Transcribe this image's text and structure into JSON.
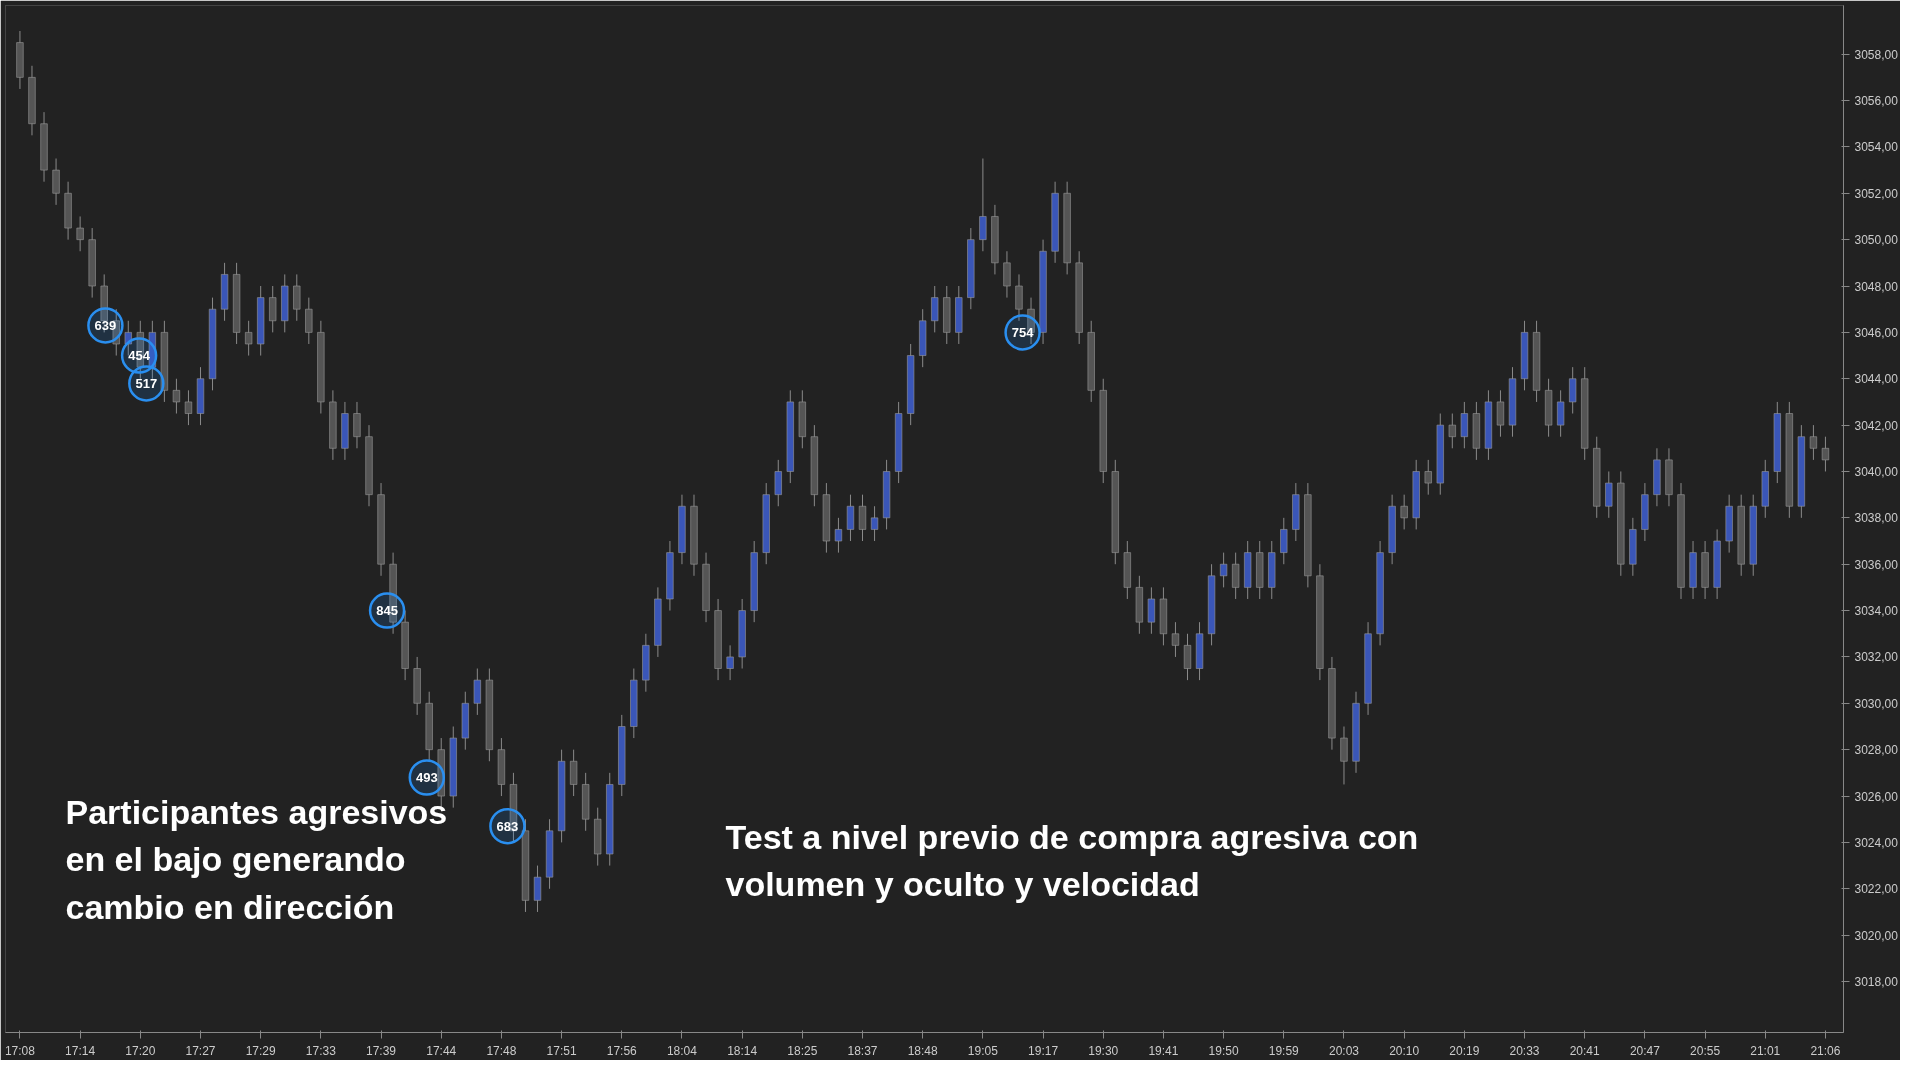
{
  "chart_data": {
    "type": "candlestick",
    "categories": [
      "17:08",
      null,
      null,
      null,
      null,
      "17:14",
      null,
      null,
      null,
      null,
      "17:20",
      null,
      null,
      null,
      null,
      "17:27",
      null,
      null,
      null,
      null,
      "17:29",
      null,
      null,
      null,
      null,
      "17:33",
      null,
      null,
      null,
      null,
      "17:39",
      null,
      null,
      null,
      null,
      "17:44",
      null,
      null,
      null,
      null,
      "17:48",
      null,
      null,
      null,
      null,
      "17:51",
      null,
      null,
      null,
      null,
      "17:56",
      null,
      null,
      null,
      null,
      "18:04",
      null,
      null,
      null,
      null,
      "18:14",
      null,
      null,
      null,
      null,
      "18:25",
      null,
      null,
      null,
      null,
      "18:37",
      null,
      null,
      null,
      null,
      "18:48",
      null,
      null,
      null,
      null,
      "19:05",
      null,
      null,
      null,
      null,
      "19:17",
      null,
      null,
      null,
      null,
      "19:30",
      null,
      null,
      null,
      null,
      "19:41",
      null,
      null,
      null,
      null,
      "19:50",
      null,
      null,
      null,
      null,
      "19:59",
      null,
      null,
      null,
      null,
      "20:03",
      null,
      null,
      null,
      null,
      "20:10",
      null,
      null,
      null,
      null,
      "20:19",
      null,
      null,
      null,
      null,
      "20:33",
      null,
      null,
      null,
      null,
      "20:41",
      null,
      null,
      null,
      null,
      "20:47",
      null,
      null,
      null,
      null,
      "20:55",
      null,
      null,
      null,
      null,
      "21:01",
      null,
      null,
      null,
      null,
      "21:06"
    ],
    "ohlc": [
      [
        3058.5,
        3059,
        3056.5,
        3057
      ],
      [
        3057,
        3057.5,
        3054.5,
        3055
      ],
      [
        3055,
        3055.5,
        3052.5,
        3053
      ],
      [
        3053,
        3053.5,
        3051.5,
        3052
      ],
      [
        3052,
        3052.5,
        3050,
        3050.5
      ],
      [
        3050.5,
        3051,
        3049.5,
        3050
      ],
      [
        3050,
        3050.5,
        3047.5,
        3048
      ],
      [
        3048,
        3048.5,
        3046,
        3046.5
      ],
      [
        3046.5,
        3047,
        3045,
        3045.5
      ],
      [
        3045.5,
        3046.5,
        3045,
        3046
      ],
      [
        3046,
        3046.5,
        3044,
        3044.5
      ],
      [
        3044.5,
        3046.5,
        3044,
        3046
      ],
      [
        3046,
        3046.5,
        3043,
        3043.5
      ],
      [
        3043.5,
        3044,
        3042.5,
        3043
      ],
      [
        3043,
        3043.5,
        3042,
        3042.5
      ],
      [
        3042.5,
        3044.5,
        3042,
        3044
      ],
      [
        3044,
        3047.5,
        3043.5,
        3047
      ],
      [
        3047,
        3049,
        3046.5,
        3048.5
      ],
      [
        3048.5,
        3049,
        3045.5,
        3046
      ],
      [
        3046,
        3046.5,
        3045,
        3045.5
      ],
      [
        3045.5,
        3048,
        3045,
        3047.5
      ],
      [
        3047.5,
        3048,
        3046,
        3046.5
      ],
      [
        3046.5,
        3048.5,
        3046,
        3048
      ],
      [
        3048,
        3048.5,
        3046.5,
        3047
      ],
      [
        3047,
        3047.5,
        3045.5,
        3046
      ],
      [
        3046,
        3046.5,
        3042.5,
        3043
      ],
      [
        3043,
        3043.5,
        3040.5,
        3041
      ],
      [
        3041,
        3043,
        3040.5,
        3042.5
      ],
      [
        3042.5,
        3043,
        3041,
        3041.5
      ],
      [
        3041.5,
        3042,
        3038.5,
        3039
      ],
      [
        3039,
        3039.5,
        3035.5,
        3036
      ],
      [
        3036,
        3036.5,
        3033,
        3033.5
      ],
      [
        3033.5,
        3034,
        3031,
        3031.5
      ],
      [
        3031.5,
        3032,
        3029.5,
        3030
      ],
      [
        3030,
        3030.5,
        3027.5,
        3028
      ],
      [
        3028,
        3028.5,
        3025.5,
        3026
      ],
      [
        3026,
        3029,
        3025.5,
        3028.5
      ],
      [
        3028.5,
        3030.5,
        3028,
        3030
      ],
      [
        3030,
        3031.5,
        3029.5,
        3031
      ],
      [
        3031,
        3031.5,
        3027.5,
        3028
      ],
      [
        3028,
        3028.5,
        3026,
        3026.5
      ],
      [
        3026.5,
        3027,
        3024,
        3024.5
      ],
      [
        3024.5,
        3025,
        3021,
        3021.5
      ],
      [
        3021.5,
        3023,
        3021,
        3022.5
      ],
      [
        3022.5,
        3025,
        3022,
        3024.5
      ],
      [
        3024.5,
        3028,
        3024,
        3027.5
      ],
      [
        3027.5,
        3028,
        3026,
        3026.5
      ],
      [
        3026.5,
        3027,
        3024.5,
        3025
      ],
      [
        3025,
        3025.5,
        3023,
        3023.5
      ],
      [
        3023.5,
        3027,
        3023,
        3026.5
      ],
      [
        3026.5,
        3029.5,
        3026,
        3029
      ],
      [
        3029,
        3031.5,
        3028.5,
        3031
      ],
      [
        3031,
        3033,
        3030.5,
        3032.5
      ],
      [
        3032.5,
        3035,
        3032,
        3034.5
      ],
      [
        3034.5,
        3037,
        3034,
        3036.5
      ],
      [
        3036.5,
        3039,
        3036,
        3038.5
      ],
      [
        3038.5,
        3039,
        3035.5,
        3036
      ],
      [
        3036,
        3036.5,
        3033.5,
        3034
      ],
      [
        3034,
        3034.5,
        3031,
        3031.5
      ],
      [
        3031.5,
        3032.5,
        3031,
        3032
      ],
      [
        3032,
        3034.5,
        3031.5,
        3034
      ],
      [
        3034,
        3037,
        3033.5,
        3036.5
      ],
      [
        3036.5,
        3039.5,
        3036,
        3039
      ],
      [
        3039,
        3040.5,
        3038.5,
        3040
      ],
      [
        3040,
        3043.5,
        3039.5,
        3043
      ],
      [
        3043,
        3043.5,
        3041,
        3041.5
      ],
      [
        3041.5,
        3042,
        3038.5,
        3039
      ],
      [
        3039,
        3039.5,
        3036.5,
        3037
      ],
      [
        3037,
        3038,
        3036.5,
        3037.5
      ],
      [
        3037.5,
        3039,
        3037,
        3038.5
      ],
      [
        3038.5,
        3039,
        3037,
        3037.5
      ],
      [
        3037.5,
        3038.5,
        3037,
        3038
      ],
      [
        3038,
        3040.5,
        3037.5,
        3040
      ],
      [
        3040,
        3043,
        3039.5,
        3042.5
      ],
      [
        3042.5,
        3045.5,
        3042,
        3045
      ],
      [
        3045,
        3047,
        3044.5,
        3046.5
      ],
      [
        3046.5,
        3048,
        3046,
        3047.5
      ],
      [
        3047.5,
        3048,
        3045.5,
        3046
      ],
      [
        3046,
        3048,
        3045.5,
        3047.5
      ],
      [
        3047.5,
        3050.5,
        3047,
        3050
      ],
      [
        3050,
        3053.5,
        3049.5,
        3051
      ],
      [
        3051,
        3051.5,
        3048.5,
        3049
      ],
      [
        3049,
        3049.5,
        3047.5,
        3048
      ],
      [
        3048,
        3048.5,
        3046.5,
        3047
      ],
      [
        3047,
        3047.5,
        3045.5,
        3046
      ],
      [
        3046,
        3050,
        3045.5,
        3049.5
      ],
      [
        3049.5,
        3052.5,
        3049,
        3052
      ],
      [
        3052,
        3052.5,
        3048.5,
        3049
      ],
      [
        3049,
        3049.5,
        3045.5,
        3046
      ],
      [
        3046,
        3046.5,
        3043,
        3043.5
      ],
      [
        3043.5,
        3044,
        3039.5,
        3040
      ],
      [
        3040,
        3040.5,
        3036,
        3036.5
      ],
      [
        3036.5,
        3037,
        3034.5,
        3035
      ],
      [
        3035,
        3035.5,
        3033,
        3033.5
      ],
      [
        3033.5,
        3035,
        3033,
        3034.5
      ],
      [
        3034.5,
        3035,
        3032.5,
        3033
      ],
      [
        3033,
        3033.5,
        3032,
        3032.5
      ],
      [
        3032.5,
        3033,
        3031,
        3031.5
      ],
      [
        3031.5,
        3033.5,
        3031,
        3033
      ],
      [
        3033,
        3036,
        3032.5,
        3035.5
      ],
      [
        3035.5,
        3036.5,
        3035,
        3036
      ],
      [
        3036,
        3036.5,
        3034.5,
        3035
      ],
      [
        3035,
        3037,
        3034.5,
        3036.5
      ],
      [
        3036.5,
        3037,
        3034.5,
        3035
      ],
      [
        3035,
        3037,
        3034.5,
        3036.5
      ],
      [
        3036.5,
        3038,
        3036,
        3037.5
      ],
      [
        3037.5,
        3039.5,
        3037,
        3039
      ],
      [
        3039,
        3039.5,
        3035,
        3035.5
      ],
      [
        3035.5,
        3036,
        3031,
        3031.5
      ],
      [
        3031.5,
        3032,
        3028,
        3028.5
      ],
      [
        3028.5,
        3029,
        3026.5,
        3027.5
      ],
      [
        3027.5,
        3030.5,
        3027,
        3030
      ],
      [
        3030,
        3033.5,
        3029.5,
        3033
      ],
      [
        3033,
        3037,
        3032.5,
        3036.5
      ],
      [
        3036.5,
        3039,
        3036,
        3038.5
      ],
      [
        3038.5,
        3039,
        3037.5,
        3038
      ],
      [
        3038,
        3040.5,
        3037.5,
        3040
      ],
      [
        3040,
        3040.5,
        3039,
        3039.5
      ],
      [
        3039.5,
        3042.5,
        3039,
        3042
      ],
      [
        3042,
        3042.5,
        3041,
        3041.5
      ],
      [
        3041.5,
        3043,
        3041,
        3042.5
      ],
      [
        3042.5,
        3043,
        3040.5,
        3041
      ],
      [
        3041,
        3043.5,
        3040.5,
        3043
      ],
      [
        3043,
        3043.5,
        3041.5,
        3042
      ],
      [
        3042,
        3044.5,
        3041.5,
        3044
      ],
      [
        3044,
        3046.5,
        3043.5,
        3046
      ],
      [
        3046,
        3046.5,
        3043,
        3043.5
      ],
      [
        3043.5,
        3044,
        3041.5,
        3042
      ],
      [
        3042,
        3043.5,
        3041.5,
        3043
      ],
      [
        3043,
        3044.5,
        3042.5,
        3044
      ],
      [
        3044,
        3044.5,
        3040.5,
        3041
      ],
      [
        3041,
        3041.5,
        3038,
        3038.5
      ],
      [
        3038.5,
        3040,
        3038,
        3039.5
      ],
      [
        3039.5,
        3040,
        3035.5,
        3036
      ],
      [
        3036,
        3038,
        3035.5,
        3037.5
      ],
      [
        3037.5,
        3039.5,
        3037,
        3039
      ],
      [
        3039,
        3041,
        3038.5,
        3040.5
      ],
      [
        3040.5,
        3041,
        3038.5,
        3039
      ],
      [
        3039,
        3039.5,
        3034.5,
        3035
      ],
      [
        3035,
        3037,
        3034.5,
        3036.5
      ],
      [
        3036.5,
        3037,
        3034.5,
        3035
      ],
      [
        3035,
        3037.5,
        3034.5,
        3037
      ],
      [
        3037,
        3039,
        3036.5,
        3038.5
      ],
      [
        3038.5,
        3039,
        3035.5,
        3036
      ],
      [
        3036,
        3039,
        3035.5,
        3038.5
      ],
      [
        3038.5,
        3040.5,
        3038,
        3040
      ],
      [
        3040,
        3043,
        3039.5,
        3042.5
      ],
      [
        3042.5,
        3043,
        3038,
        3038.5
      ],
      [
        3038.5,
        3042,
        3038,
        3041.5
      ],
      [
        3041.5,
        3042,
        3040.5,
        3041
      ],
      [
        3041,
        3041.5,
        3040,
        3040.5
      ]
    ],
    "ylim": [
      3015.8,
      3060.1
    ],
    "yticks": [
      {
        "value": 3018,
        "label": "3018,00"
      },
      {
        "value": 3020,
        "label": "3020,00"
      },
      {
        "value": 3022,
        "label": "3022,00"
      },
      {
        "value": 3024,
        "label": "3024,00"
      },
      {
        "value": 3026,
        "label": "3026,00"
      },
      {
        "value": 3028,
        "label": "3028,00"
      },
      {
        "value": 3030,
        "label": "3030,00"
      },
      {
        "value": 3032,
        "label": "3032,00"
      },
      {
        "value": 3034,
        "label": "3034,00"
      },
      {
        "value": 3036,
        "label": "3036,00"
      },
      {
        "value": 3038,
        "label": "3038,00"
      },
      {
        "value": 3040,
        "label": "3040,00"
      },
      {
        "value": 3042,
        "label": "3042,00"
      },
      {
        "value": 3044,
        "label": "3044,00"
      },
      {
        "value": 3046,
        "label": "3046,00"
      },
      {
        "value": 3048,
        "label": "3048,00"
      },
      {
        "value": 3050,
        "label": "3050,00"
      },
      {
        "value": 3052,
        "label": "3052,00"
      },
      {
        "value": 3054,
        "label": "3054,00"
      },
      {
        "value": 3056,
        "label": "3056,00"
      },
      {
        "value": 3058,
        "label": "3058,00"
      }
    ],
    "grid": false,
    "annotations": [
      {
        "text": "639",
        "y": 3046.3
      },
      {
        "text": "454",
        "y": 3045.0
      },
      {
        "text": "517",
        "y": 3043.8
      },
      {
        "text": "845",
        "y": 3034.0
      },
      {
        "text": "493",
        "y": 3026.8
      },
      {
        "text": "683",
        "y": 3024.7
      },
      {
        "text": "754",
        "y": 3046.0
      },
      "Participantes agresivos\nen el bajo generando\ncambio en dirección",
      "Test a nivel previo de compra agresiva con\nvolumen y oculto y velocidad"
    ]
  }
}
